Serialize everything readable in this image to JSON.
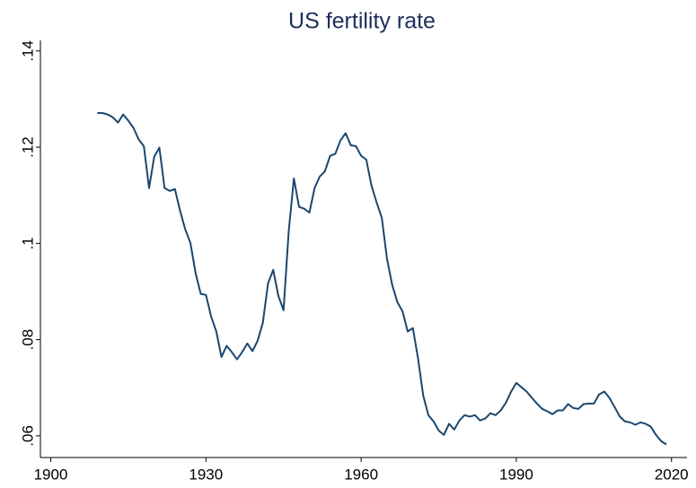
{
  "chart_data": {
    "type": "line",
    "title": "US fertility rate",
    "x": [
      1909,
      1910,
      1911,
      1912,
      1913,
      1914,
      1915,
      1916,
      1917,
      1918,
      1919,
      1920,
      1921,
      1922,
      1923,
      1924,
      1925,
      1926,
      1927,
      1928,
      1929,
      1930,
      1931,
      1932,
      1933,
      1934,
      1935,
      1936,
      1937,
      1938,
      1939,
      1940,
      1941,
      1942,
      1943,
      1944,
      1945,
      1946,
      1947,
      1948,
      1949,
      1950,
      1951,
      1952,
      1953,
      1954,
      1955,
      1956,
      1957,
      1958,
      1959,
      1960,
      1961,
      1962,
      1963,
      1964,
      1965,
      1966,
      1967,
      1968,
      1969,
      1970,
      1971,
      1972,
      1973,
      1974,
      1975,
      1976,
      1977,
      1978,
      1979,
      1980,
      1981,
      1982,
      1983,
      1984,
      1985,
      1986,
      1987,
      1988,
      1989,
      1990,
      1991,
      1992,
      1993,
      1994,
      1995,
      1996,
      1997,
      1998,
      1999,
      2000,
      2001,
      2002,
      2003,
      2004,
      2005,
      2006,
      2007,
      2008,
      2009,
      2010,
      2011,
      2012,
      2013,
      2014,
      2015,
      2016,
      2017,
      2018,
      2019
    ],
    "series": [
      {
        "color": "#1a476f",
        "values": [
          0.1271,
          0.1271,
          0.1268,
          0.1262,
          0.1251,
          0.1268,
          0.1255,
          0.124,
          0.1216,
          0.1202,
          0.1115,
          0.118,
          0.1199,
          0.1115,
          0.1109,
          0.1113,
          0.1068,
          0.1029,
          0.1001,
          0.0938,
          0.0895,
          0.0893,
          0.0848,
          0.0817,
          0.0764,
          0.0787,
          0.0774,
          0.0759,
          0.0774,
          0.0792,
          0.0776,
          0.0798,
          0.0835,
          0.0917,
          0.0945,
          0.0891,
          0.0861,
          0.1025,
          0.1135,
          0.1076,
          0.1072,
          0.1064,
          0.1115,
          0.1139,
          0.115,
          0.1182,
          0.1186,
          0.1214,
          0.1229,
          0.1204,
          0.1202,
          0.1182,
          0.1174,
          0.112,
          0.1085,
          0.1053,
          0.0968,
          0.0914,
          0.0878,
          0.0859,
          0.0817,
          0.0824,
          0.0761,
          0.0684,
          0.0643,
          0.063,
          0.0611,
          0.0602,
          0.0625,
          0.0613,
          0.0632,
          0.0643,
          0.064,
          0.0643,
          0.0632,
          0.0636,
          0.0647,
          0.0643,
          0.0653,
          0.0669,
          0.0692,
          0.071,
          0.0701,
          0.0692,
          0.0679,
          0.0667,
          0.0656,
          0.0651,
          0.0645,
          0.0653,
          0.0653,
          0.0666,
          0.0658,
          0.0656,
          0.0666,
          0.0667,
          0.0667,
          0.0686,
          0.0692,
          0.0679,
          0.066,
          0.064,
          0.063,
          0.0628,
          0.0623,
          0.0628,
          0.0625,
          0.0619,
          0.0602,
          0.0589,
          0.0582
        ]
      }
    ],
    "xlim": [
      1898,
      2023
    ],
    "xticks": [
      1900,
      1930,
      1960,
      1990,
      2020
    ],
    "ylim": [
      0.0555,
      0.1422
    ],
    "yticks": [
      {
        "value": 0.06,
        "label": ".06"
      },
      {
        "value": 0.08,
        "label": ".08"
      },
      {
        "value": 0.1,
        "label": ".1"
      },
      {
        "value": 0.12,
        "label": ".12"
      },
      {
        "value": 0.14,
        "label": ".14"
      }
    ],
    "grid": false
  }
}
